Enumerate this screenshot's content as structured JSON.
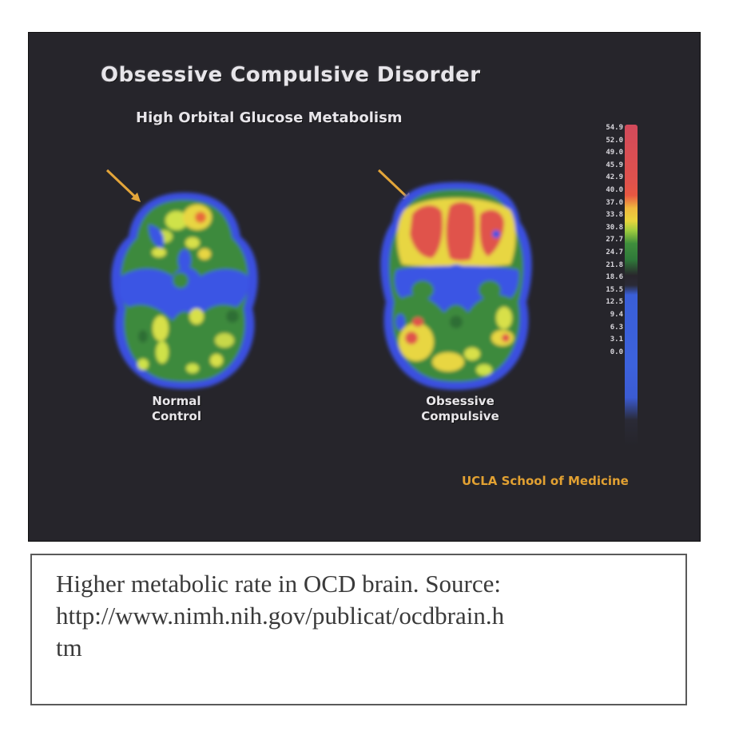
{
  "slide": {
    "title": "Obsessive Compulsive Disorder",
    "subtitle": "High Orbital Glucose Metabolism",
    "label_normal": "Normal\nControl",
    "label_ocd": "Obsessive\nCompulsive",
    "credit": "UCLA School of Medicine",
    "scale_values": [
      "54.9",
      "52.0",
      "49.0",
      "45.9",
      "42.9",
      "40.0",
      "37.0",
      "33.8",
      "30.8",
      "27.7",
      "24.7",
      "21.8",
      "18.6",
      "15.5",
      "12.5",
      "9.4",
      "6.3",
      "3.1",
      "0.0"
    ],
    "scale_colors": {
      "high": "#e0524c",
      "mid_high": "#e8d53d",
      "mid": "#3f8e3c",
      "low": "#3c62dc"
    }
  },
  "caption": {
    "text": "Higher metabolic rate in OCD brain. Source:\nhttp://www.nimh.nih.gov/publicat/ocdbrain.h\ntm"
  }
}
